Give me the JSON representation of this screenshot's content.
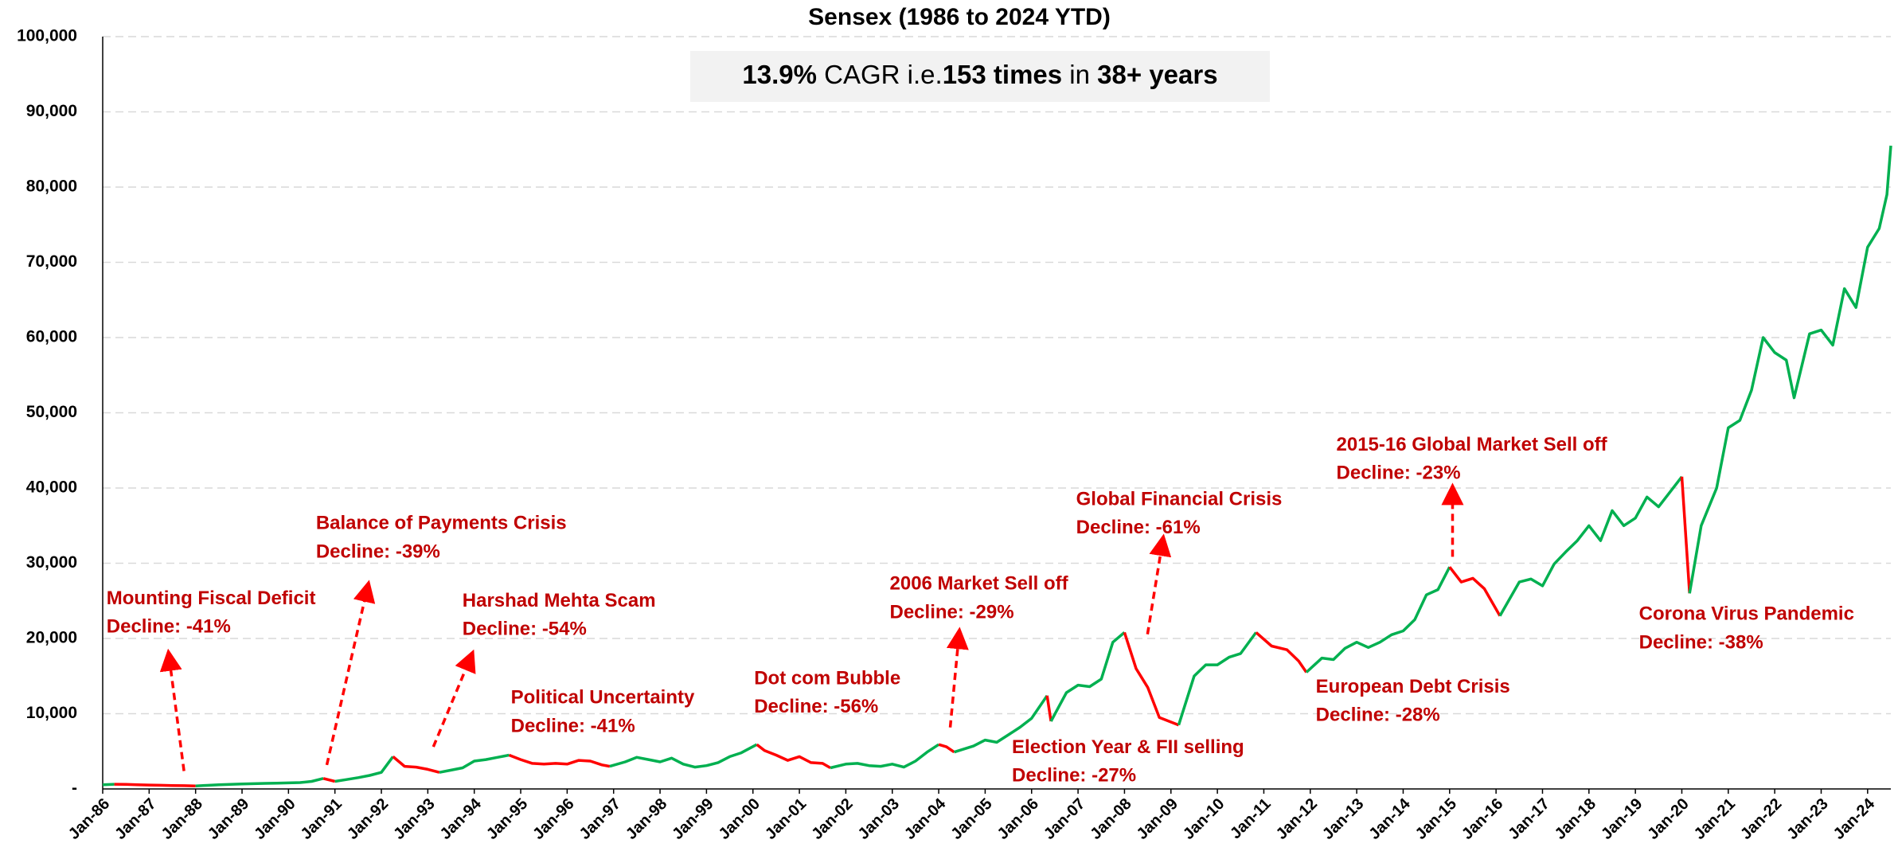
{
  "chart_data": {
    "type": "line",
    "title": "Sensex (1986 to 2024 YTD)",
    "callout": [
      {
        "text": "13.9%",
        "bold": true
      },
      {
        "text": " CAGR i.e.",
        "bold": false
      },
      {
        "text": "153 times",
        "bold": true
      },
      {
        "text": " in ",
        "bold": false
      },
      {
        "text": "38+ years",
        "bold": true
      }
    ],
    "x": [
      "Jan-86",
      "Apr-86",
      "Jul-86",
      "Oct-86",
      "Jan-87",
      "Apr-87",
      "Jul-87",
      "Oct-87",
      "Jan-88",
      "Apr-88",
      "Jul-88",
      "Oct-88",
      "Jan-89",
      "Apr-89",
      "Jul-89",
      "Oct-89",
      "Jan-90",
      "Apr-90",
      "Jul-90",
      "Oct-90",
      "Jan-91",
      "Apr-91",
      "Jul-91",
      "Oct-91",
      "Jan-92",
      "Apr-92",
      "Jul-92",
      "Oct-92",
      "Jan-93",
      "Apr-93",
      "Jul-93",
      "Oct-93",
      "Jan-94",
      "Apr-94",
      "Jul-94",
      "Oct-94",
      "Jan-95",
      "Apr-95",
      "Jul-95",
      "Oct-95",
      "Jan-96",
      "Apr-96",
      "Jul-96",
      "Oct-96",
      "Dec-96",
      "Apr-97",
      "Jul-97",
      "Oct-97",
      "Jan-98",
      "Apr-98",
      "Jul-98",
      "Oct-98",
      "Jan-99",
      "Apr-99",
      "Jul-99",
      "Oct-99",
      "Feb-00",
      "Apr-00",
      "Jul-00",
      "Oct-00",
      "Jan-01",
      "Apr-01",
      "Jul-01",
      "Sep-01",
      "Jan-02",
      "Apr-02",
      "Jul-02",
      "Oct-02",
      "Jan-03",
      "Apr-03",
      "Jul-03",
      "Oct-03",
      "Jan-04",
      "Mar-04",
      "May-04",
      "Oct-04",
      "Jan-05",
      "Apr-05",
      "Jul-05",
      "Oct-05",
      "Jan-06",
      "May-06",
      "Jun-06",
      "Oct-06",
      "Jan-07",
      "Apr-07",
      "Jul-07",
      "Oct-07",
      "Jan-08",
      "Apr-08",
      "Jul-08",
      "Oct-08",
      "Mar-09",
      "Jul-09",
      "Oct-09",
      "Jan-10",
      "Apr-10",
      "Jul-10",
      "Nov-10",
      "Mar-11",
      "Jul-11",
      "Oct-11",
      "Dec-11",
      "Apr-12",
      "Jul-12",
      "Oct-12",
      "Jan-13",
      "Apr-13",
      "Jul-13",
      "Oct-13",
      "Jan-14",
      "Apr-14",
      "Jul-14",
      "Oct-14",
      "Jan-15",
      "Apr-15",
      "Jul-15",
      "Oct-15",
      "Feb-16",
      "Jul-16",
      "Oct-16",
      "Jan-17",
      "Apr-17",
      "Jul-17",
      "Oct-17",
      "Jan-18",
      "Apr-18",
      "Jul-18",
      "Oct-18",
      "Jan-19",
      "Apr-19",
      "Jul-19",
      "Jan-20",
      "Mar-20",
      "Jun-20",
      "Oct-20",
      "Jan-21",
      "Apr-21",
      "Jul-21",
      "Oct-21",
      "Jan-22",
      "Apr-22",
      "Jun-22",
      "Oct-22",
      "Jan-23",
      "Apr-23",
      "Jul-23",
      "Oct-23",
      "Jan-24",
      "Apr-24",
      "Jun-24",
      "Jul-24"
    ],
    "series": [
      {
        "color": "#00b050",
        "decline_color": "#ff0000",
        "values": [
          560,
          620,
          600,
          560,
          520,
          490,
          460,
          430,
          400,
          480,
          550,
          610,
          660,
          700,
          740,
          770,
          800,
          850,
          1000,
          1400,
          1000,
          1250,
          1500,
          1800,
          2200,
          4300,
          3000,
          2900,
          2600,
          2200,
          2500,
          2800,
          3700,
          3900,
          4200,
          4500,
          3900,
          3400,
          3300,
          3400,
          3300,
          3800,
          3700,
          3200,
          3000,
          3600,
          4200,
          3900,
          3600,
          4100,
          3300,
          2900,
          3100,
          3500,
          4300,
          4800,
          5900,
          5100,
          4500,
          3800,
          4300,
          3500,
          3400,
          2800,
          3300,
          3400,
          3100,
          3000,
          3300,
          2900,
          3700,
          4900,
          5900,
          5600,
          4900,
          5700,
          6500,
          6200,
          7200,
          8200,
          9400,
          12400,
          9000,
          12800,
          13800,
          13600,
          14600,
          19500,
          20800,
          16000,
          13500,
          9500,
          8500,
          15000,
          16500,
          16500,
          17500,
          18000,
          20800,
          19000,
          18500,
          17000,
          15500,
          17400,
          17200,
          18700,
          19500,
          18800,
          19500,
          20500,
          21000,
          22500,
          25800,
          26500,
          29500,
          27500,
          28000,
          26600,
          23000,
          27500,
          27900,
          27000,
          29900,
          31500,
          33000,
          35000,
          33000,
          37000,
          35000,
          36000,
          38800,
          37500,
          41500,
          26000,
          35000,
          40000,
          48000,
          49000,
          53000,
          60000,
          58000,
          57000,
          52000,
          60500,
          61000,
          59000,
          66500,
          64000,
          72000,
          74500,
          79000,
          85500
        ]
      }
    ],
    "annotations": [
      {
        "lines": [
          "Mounting Fiscal Deficit",
          "Decline: -41%"
        ],
        "from": "Apr-86",
        "to": "Jan-88"
      },
      {
        "lines": [
          "Balance of Payments Crisis",
          "Decline: -39%"
        ],
        "from": "Oct-90",
        "to": "Jan-91"
      },
      {
        "lines": [
          "Harshad Mehta Scam",
          "Decline: -54%"
        ],
        "from": "Apr-92",
        "to": "Apr-93"
      },
      {
        "lines": [
          "Political Uncertainty",
          "Decline: -41%"
        ],
        "from": "Oct-94",
        "to": "Dec-96"
      },
      {
        "lines": [
          "Dot com Bubble",
          "Decline: -56%"
        ],
        "from": "Feb-00",
        "to": "Sep-01"
      },
      {
        "lines": [
          "2006 Market Sell off",
          "Decline: -29%"
        ],
        "from": "Jan-04",
        "to": "May-04"
      },
      {
        "lines": [
          "Election Year & FII selling",
          "Decline: -27%"
        ],
        "from": "May-06",
        "to": "Jun-06"
      },
      {
        "lines": [
          "Global Financial Crisis",
          "Decline: -61%"
        ],
        "from": "Jan-08",
        "to": "Mar-09"
      },
      {
        "lines": [
          "European Debt Crisis",
          "Decline: -28%"
        ],
        "from": "Nov-10",
        "to": "Dec-11"
      },
      {
        "lines": [
          "2015-16 Global Market Sell off",
          "Decline: -23%"
        ],
        "from": "Jan-15",
        "to": "Feb-16"
      },
      {
        "lines": [
          "Corona Virus Pandemic",
          "Decline: -38%"
        ],
        "from": "Jan-20",
        "to": "Mar-20"
      }
    ],
    "xlim": [
      "Jan-86",
      "Jul-24"
    ],
    "xticks": [
      "Jan-86",
      "Jan-87",
      "Jan-88",
      "Jan-89",
      "Jan-90",
      "Jan-91",
      "Jan-92",
      "Jan-93",
      "Jan-94",
      "Jan-95",
      "Jan-96",
      "Jan-97",
      "Jan-98",
      "Jan-99",
      "Jan-00",
      "Jan-01",
      "Jan-02",
      "Jan-03",
      "Jan-04",
      "Jan-05",
      "Jan-06",
      "Jan-07",
      "Jan-08",
      "Jan-09",
      "Jan-10",
      "Jan-11",
      "Jan-12",
      "Jan-13",
      "Jan-14",
      "Jan-15",
      "Jan-16",
      "Jan-17",
      "Jan-18",
      "Jan-19",
      "Jan-20",
      "Jan-21",
      "Jan-22",
      "Jan-23",
      "Jan-24"
    ],
    "ylim": [
      0,
      100000
    ],
    "yticks": [
      {
        "value": 0,
        "label": "-"
      },
      {
        "value": 10000,
        "label": "10,000"
      },
      {
        "value": 20000,
        "label": "20,000"
      },
      {
        "value": 30000,
        "label": "30,000"
      },
      {
        "value": 40000,
        "label": "40,000"
      },
      {
        "value": 50000,
        "label": "50,000"
      },
      {
        "value": 60000,
        "label": "60,000"
      },
      {
        "value": 70000,
        "label": "70,000"
      },
      {
        "value": 80000,
        "label": "80,000"
      },
      {
        "value": 90000,
        "label": "90,000"
      },
      {
        "value": 100000,
        "label": "100,000"
      }
    ],
    "grid": true
  }
}
